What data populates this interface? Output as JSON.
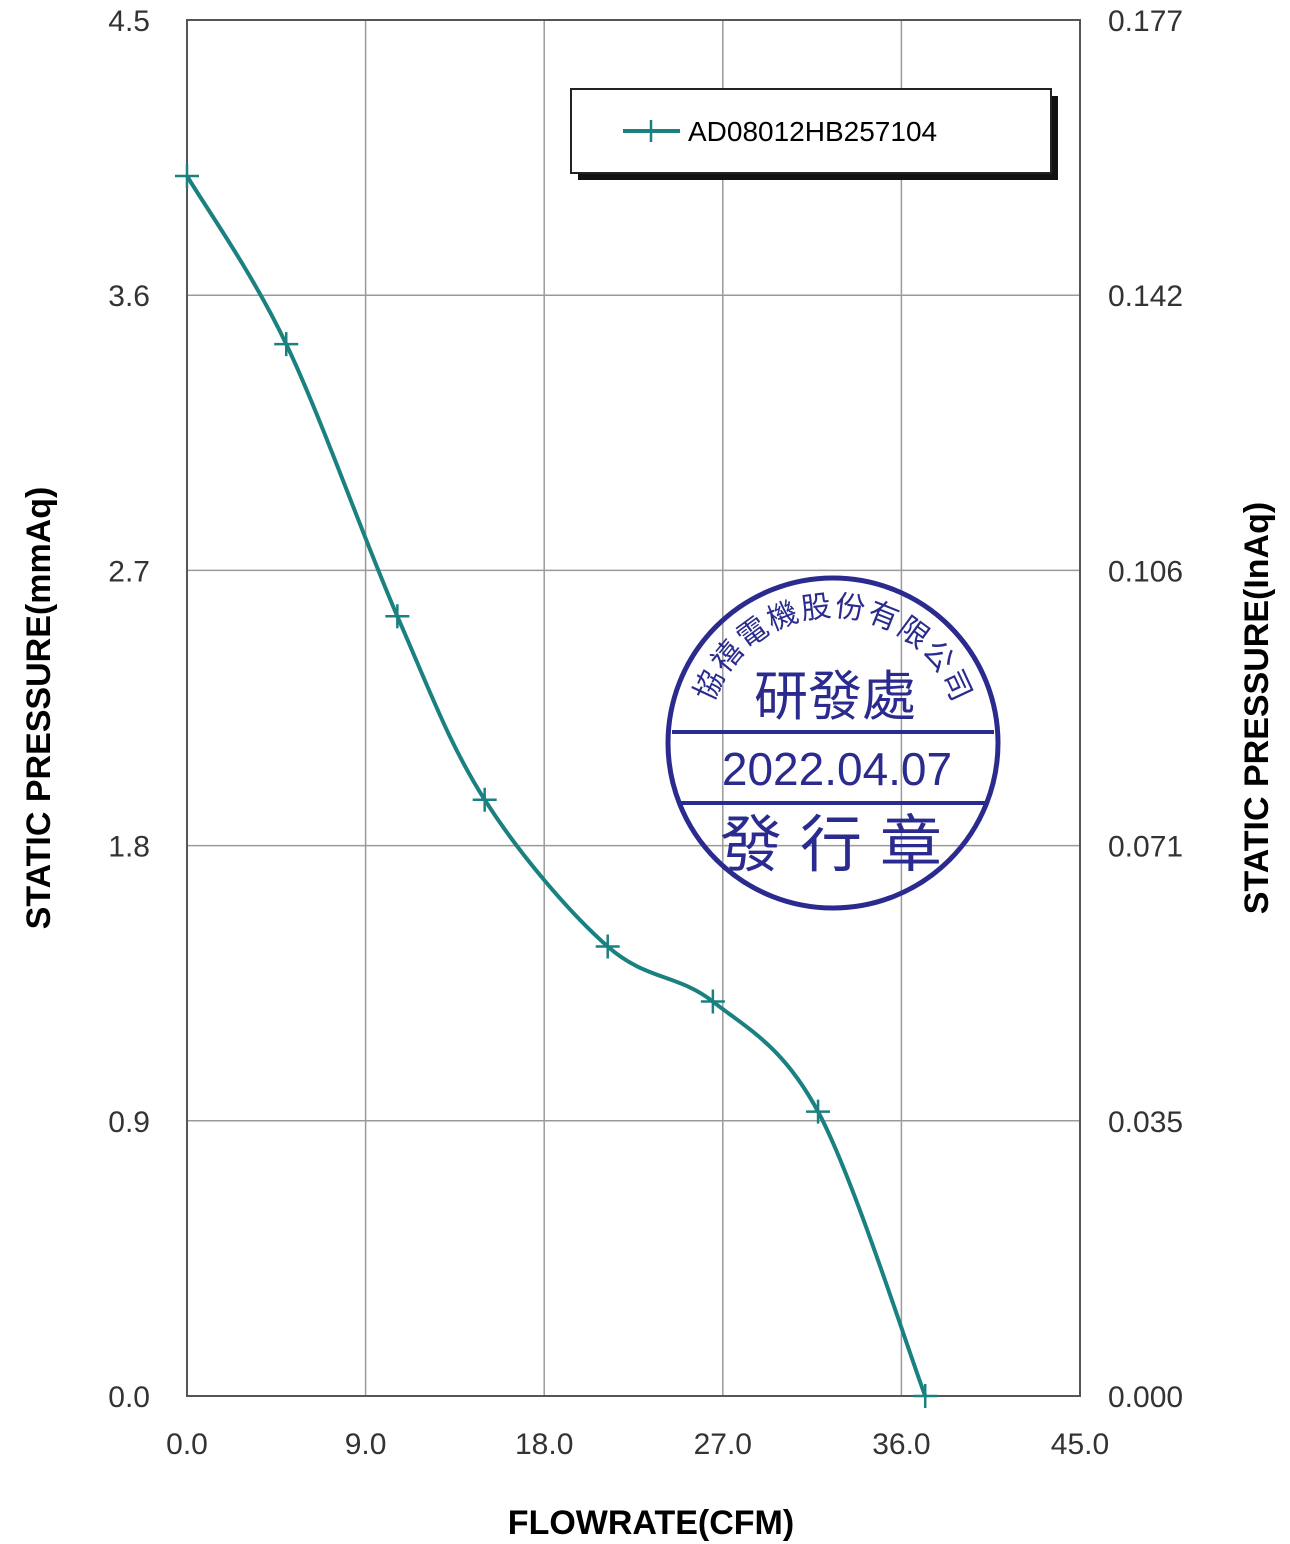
{
  "chart_data": {
    "type": "line",
    "title": "",
    "xlabel": "FLOWRATE(CFM)",
    "ylabel": "STATIC PRESSURE(mmAq)",
    "ylabel_right": "STATIC PRESSURE(InAq)",
    "xlim": [
      0,
      45
    ],
    "ylim": [
      0,
      4.5
    ],
    "x_ticks": [
      "0.0",
      "9.0",
      "18.0",
      "27.0",
      "36.0",
      "45.0"
    ],
    "y_ticks": [
      "0.0",
      "0.9",
      "1.8",
      "2.7",
      "3.6",
      "4.5"
    ],
    "y_ticks_right": [
      "0.000",
      "0.035",
      "0.071",
      "0.106",
      "0.142",
      "0.177"
    ],
    "grid": true,
    "legend_position": "top-right",
    "series": [
      {
        "name": "AD08012HB257104",
        "color": "#1a8080",
        "marker": "plus",
        "x": [
          0.0,
          5.0,
          10.6,
          15.0,
          21.2,
          26.5,
          31.8,
          37.2
        ],
        "y": [
          3.99,
          3.44,
          2.55,
          1.95,
          1.47,
          1.29,
          0.93,
          0.0
        ]
      }
    ]
  },
  "stamp": {
    "color": "#2b2b8f",
    "company": "協禧電機股份有限公司",
    "department": "研發處",
    "date": "2022.04.07",
    "label": "發行章"
  }
}
